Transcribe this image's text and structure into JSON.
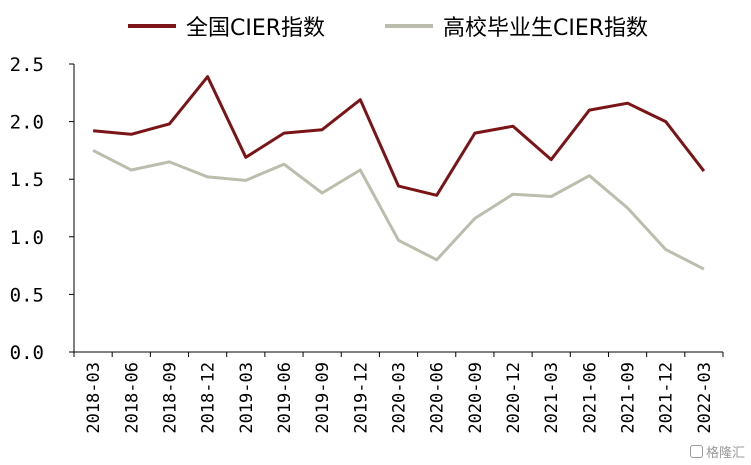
{
  "chart_data": {
    "type": "line",
    "categories": [
      "2018-03",
      "2018-06",
      "2018-09",
      "2018-12",
      "2019-03",
      "2019-06",
      "2019-09",
      "2019-12",
      "2020-03",
      "2020-06",
      "2020-09",
      "2020-12",
      "2021-03",
      "2021-06",
      "2021-09",
      "2021-12",
      "2022-03"
    ],
    "series": [
      {
        "name": "全国CIER指数",
        "color": "#7b1416",
        "values": [
          1.92,
          1.89,
          1.98,
          2.39,
          1.69,
          1.9,
          1.93,
          2.19,
          1.44,
          1.36,
          1.9,
          1.96,
          1.67,
          2.1,
          2.16,
          2.0,
          1.57
        ]
      },
      {
        "name": "高校毕业生CIER指数",
        "color": "#bdbdad",
        "values": [
          1.75,
          1.58,
          1.65,
          1.52,
          1.49,
          1.63,
          1.38,
          1.58,
          0.97,
          0.8,
          1.16,
          1.37,
          1.35,
          1.53,
          1.25,
          0.89,
          0.72
        ]
      }
    ],
    "ylim": [
      0,
      2.5
    ],
    "yticks": [
      0,
      0.5,
      1.0,
      1.5,
      2.0,
      2.5
    ],
    "ytick_labels": [
      "0.0",
      "0.5",
      "1.0",
      "1.5",
      "2.0",
      "2.5"
    ],
    "legend_position": "top",
    "grid": false
  },
  "watermark": {
    "text": "格隆汇",
    "icon": "logo-square-icon"
  }
}
